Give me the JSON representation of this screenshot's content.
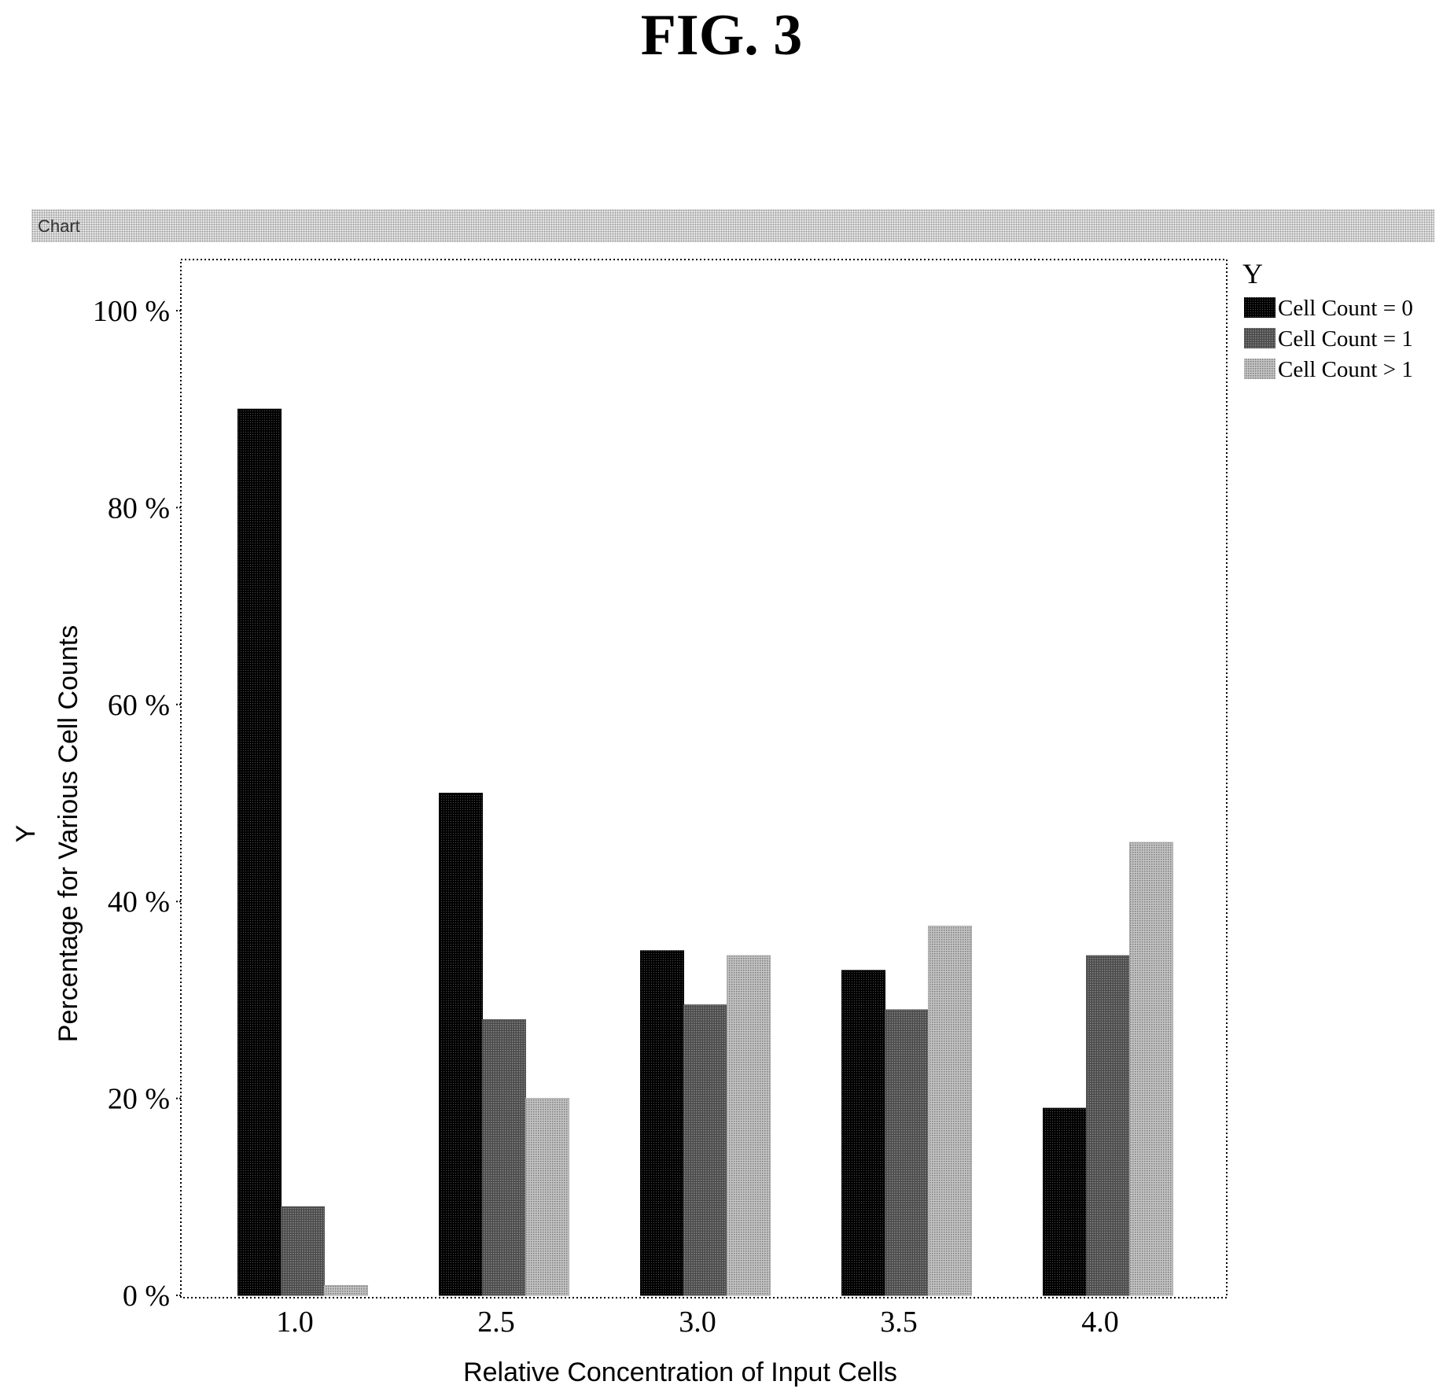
{
  "figure_title": "FIG. 3",
  "header_label": "Chart",
  "chart_data": {
    "type": "bar",
    "xlabel": "Relative Concentration of Input Cells",
    "ylabel_line1": "Y",
    "ylabel_line2": "Percentage for Various Cell Counts",
    "ylim": [
      0,
      105
    ],
    "yticks": [
      0,
      20,
      40,
      60,
      80,
      100
    ],
    "ytick_labels": [
      "0 %",
      "20 %",
      "40 %",
      "60 %",
      "80 %",
      "100 %"
    ],
    "categories": [
      "1.0",
      "2.5",
      "3.0",
      "3.5",
      "4.0"
    ],
    "legend_title": "Y",
    "legend_position": "top-right",
    "grid": false,
    "series": [
      {
        "name": "Cell Count = 0",
        "values": [
          90,
          51,
          35,
          33,
          19
        ],
        "color": "#000000"
      },
      {
        "name": "Cell Count = 1",
        "values": [
          9,
          28,
          29.5,
          29,
          34.5
        ],
        "color": "#555555"
      },
      {
        "name": "Cell Count > 1",
        "values": [
          1,
          20,
          34.5,
          37.5,
          46
        ],
        "color": "#aaaaaa"
      }
    ]
  }
}
